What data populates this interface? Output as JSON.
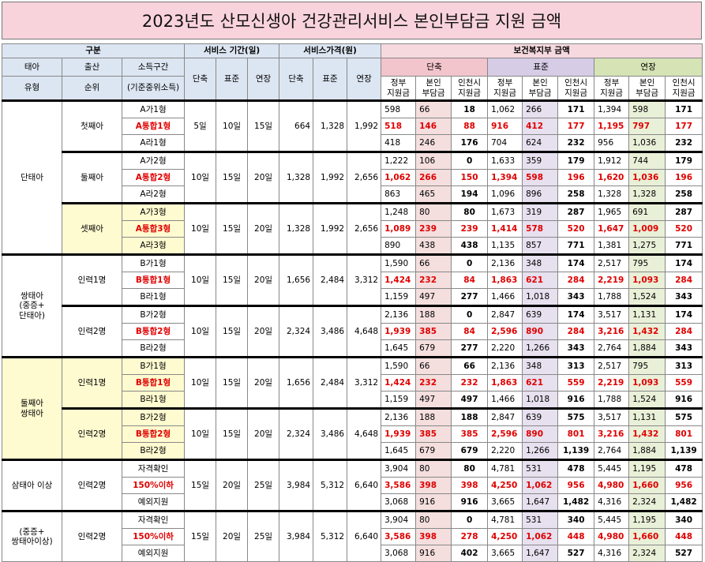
{
  "title": "2023년도 산모신생아 건강관리서비스 본인부담금 지원 금액",
  "header": {
    "gubun": "구분",
    "period": "서비스 기간(일)",
    "price": "서비스가격(원)",
    "mohw": "보건복지부 금액",
    "row2": [
      "태아",
      "출산",
      "소득구간"
    ],
    "row3": [
      "유형",
      "순위",
      "(기준중위소득)"
    ],
    "period_cols": [
      "단축",
      "표준",
      "연장"
    ],
    "price_cols": [
      "단축",
      "표준",
      "연장"
    ],
    "mohw_groups": [
      "단축",
      "표준",
      "연장"
    ],
    "sub_cols": [
      "정부\n지원금",
      "본인\n부담금",
      "인천시\n지원금"
    ]
  },
  "groups": [
    {
      "type": "단태아",
      "subgroups": [
        {
          "order": "첫째아",
          "days": [
            "5일",
            "10일",
            "15일"
          ],
          "prices": [
            "664",
            "1,328",
            "1,992"
          ],
          "rows": [
            {
              "income": "A가1형",
              "values": [
                "598",
                "66",
                "18",
                "1,062",
                "266",
                "171",
                "1,394",
                "598",
                "171"
              ]
            },
            {
              "income": "A통합1형",
              "values": [
                "518",
                "146",
                "88",
                "916",
                "412",
                "177",
                "1,195",
                "797",
                "177"
              ]
            },
            {
              "income": "A라1형",
              "values": [
                "418",
                "246",
                "176",
                "704",
                "624",
                "232",
                "956",
                "1,036",
                "232"
              ]
            }
          ]
        },
        {
          "order": "둘째아",
          "days": [
            "10일",
            "15일",
            "20일"
          ],
          "prices": [
            "1,328",
            "1,992",
            "2,656"
          ],
          "rows": [
            {
              "income": "A가2형",
              "values": [
                "1,222",
                "106",
                "0",
                "1,633",
                "359",
                "179",
                "1,912",
                "744",
                "179"
              ]
            },
            {
              "income": "A통합2형",
              "values": [
                "1,062",
                "266",
                "150",
                "1,394",
                "598",
                "196",
                "1,620",
                "1,036",
                "196"
              ]
            },
            {
              "income": "A라2형",
              "values": [
                "863",
                "465",
                "194",
                "1,096",
                "896",
                "258",
                "1,328",
                "1,328",
                "258"
              ]
            }
          ]
        },
        {
          "order": "셋째아",
          "color": "#fffbd0",
          "days": [
            "10일",
            "15일",
            "20일"
          ],
          "prices": [
            "1,328",
            "1,992",
            "2,656"
          ],
          "rows": [
            {
              "income": "A가3형",
              "values": [
                "1,248",
                "80",
                "80",
                "1,673",
                "319",
                "287",
                "1,965",
                "691",
                "287"
              ]
            },
            {
              "income": "A통합3형",
              "values": [
                "1,089",
                "239",
                "239",
                "1,414",
                "578",
                "520",
                "1,647",
                "1,009",
                "520"
              ]
            },
            {
              "income": "A라3형",
              "values": [
                "890",
                "438",
                "438",
                "1,135",
                "857",
                "771",
                "1,381",
                "1,275",
                "771"
              ]
            }
          ]
        }
      ]
    },
    {
      "type": "쌍태아\n(중증+\n단태아)",
      "subgroups": [
        {
          "order": "인력1명",
          "days": [
            "10일",
            "15일",
            "20일"
          ],
          "prices": [
            "1,656",
            "2,484",
            "3,312"
          ],
          "rows": [
            {
              "income": "B가1형",
              "values": [
                "1,590",
                "66",
                "0",
                "2,136",
                "348",
                "174",
                "2,517",
                "795",
                "174"
              ]
            },
            {
              "income": "B통합1형",
              "values": [
                "1,424",
                "232",
                "84",
                "1,863",
                "621",
                "284",
                "2,219",
                "1,093",
                "284"
              ]
            },
            {
              "income": "B라1형",
              "values": [
                "1,159",
                "497",
                "277",
                "1,466",
                "1,018",
                "343",
                "1,788",
                "1,524",
                "343"
              ]
            }
          ]
        },
        {
          "order": "인력2명",
          "days": [
            "10일",
            "15일",
            "20일"
          ],
          "prices": [
            "2,324",
            "3,486",
            "4,648"
          ],
          "rows": [
            {
              "income": "B가2형",
              "values": [
                "2,136",
                "188",
                "0",
                "2,847",
                "639",
                "174",
                "3,517",
                "1,131",
                "174"
              ]
            },
            {
              "income": "B통합2형",
              "values": [
                "1,939",
                "385",
                "84",
                "2,596",
                "890",
                "284",
                "3,216",
                "1,432",
                "284"
              ]
            },
            {
              "income": "B라2형",
              "values": [
                "1,645",
                "679",
                "277",
                "2,220",
                "1,266",
                "343",
                "2,764",
                "1,884",
                "343"
              ]
            }
          ]
        }
      ]
    },
    {
      "type": "둘째아\n쌍태아",
      "color": "#fffbd0",
      "subgroups": [
        {
          "order": "인력1명",
          "color": "#fffbd0",
          "days": [
            "10일",
            "15일",
            "20일"
          ],
          "prices": [
            "1,656",
            "2,484",
            "3,312"
          ],
          "rows": [
            {
              "income": "B가1형",
              "values": [
                "1,590",
                "66",
                "66",
                "2,136",
                "348",
                "313",
                "2,517",
                "795",
                "313"
              ]
            },
            {
              "income": "B통합1형",
              "values": [
                "1,424",
                "232",
                "232",
                "1,863",
                "621",
                "559",
                "2,219",
                "1,093",
                "559"
              ]
            },
            {
              "income": "B라1형",
              "values": [
                "1,159",
                "497",
                "497",
                "1,466",
                "1,018",
                "916",
                "1,788",
                "1,524",
                "916"
              ]
            }
          ]
        },
        {
          "order": "인력2명",
          "color": "#fffbd0",
          "days": [
            "10일",
            "15일",
            "20일"
          ],
          "prices": [
            "2,324",
            "3,486",
            "4,648"
          ],
          "rows": [
            {
              "income": "B가2형",
              "values": [
                "2,136",
                "188",
                "188",
                "2,847",
                "639",
                "575",
                "3,517",
                "1,131",
                "575"
              ]
            },
            {
              "income": "B통합2형",
              "values": [
                "1,939",
                "385",
                "385",
                "2,596",
                "890",
                "801",
                "3,216",
                "1,432",
                "801"
              ]
            },
            {
              "income": "B라2형",
              "values": [
                "1,645",
                "679",
                "679",
                "2,220",
                "1,266",
                "1,139",
                "2,764",
                "1,884",
                "1,139"
              ]
            }
          ]
        }
      ]
    },
    {
      "type": "삼태아 이상",
      "subgroups": [
        {
          "order": "인력2명",
          "days": [
            "15일",
            "20일",
            "25일"
          ],
          "prices": [
            "3,984",
            "5,312",
            "6,640"
          ],
          "rows": [
            {
              "income": "자격확인",
              "values": [
                "3,904",
                "80",
                "80",
                "4,781",
                "531",
                "478",
                "5,445",
                "1,195",
                "478"
              ]
            },
            {
              "income": "150%이하",
              "values": [
                "3,586",
                "398",
                "398",
                "4,250",
                "1,062",
                "956",
                "4,980",
                "1,660",
                "956"
              ]
            },
            {
              "income": "예외지원",
              "values": [
                "3,068",
                "916",
                "916",
                "3,665",
                "1,647",
                "1,482",
                "4,316",
                "2,324",
                "1,482"
              ]
            }
          ]
        }
      ]
    },
    {
      "type": "(중증+\n쌍태아이상)",
      "subgroups": [
        {
          "order": "인력2명",
          "days": [
            "15일",
            "20일",
            "25일"
          ],
          "prices": [
            "3,984",
            "5,312",
            "6,640"
          ],
          "rows": [
            {
              "income": "자격확인",
              "values": [
                "3,904",
                "80",
                "0",
                "4,781",
                "531",
                "340",
                "5,445",
                "1,195",
                "340"
              ]
            },
            {
              "income": "150%이하",
              "values": [
                "3,586",
                "398",
                "278",
                "4,250",
                "1,062",
                "448",
                "4,980",
                "1,660",
                "448"
              ]
            },
            {
              "income": "예외지원",
              "values": [
                "3,068",
                "916",
                "402",
                "3,665",
                "1,647",
                "527",
                "4,316",
                "2,324",
                "527"
              ]
            }
          ]
        }
      ]
    }
  ]
}
